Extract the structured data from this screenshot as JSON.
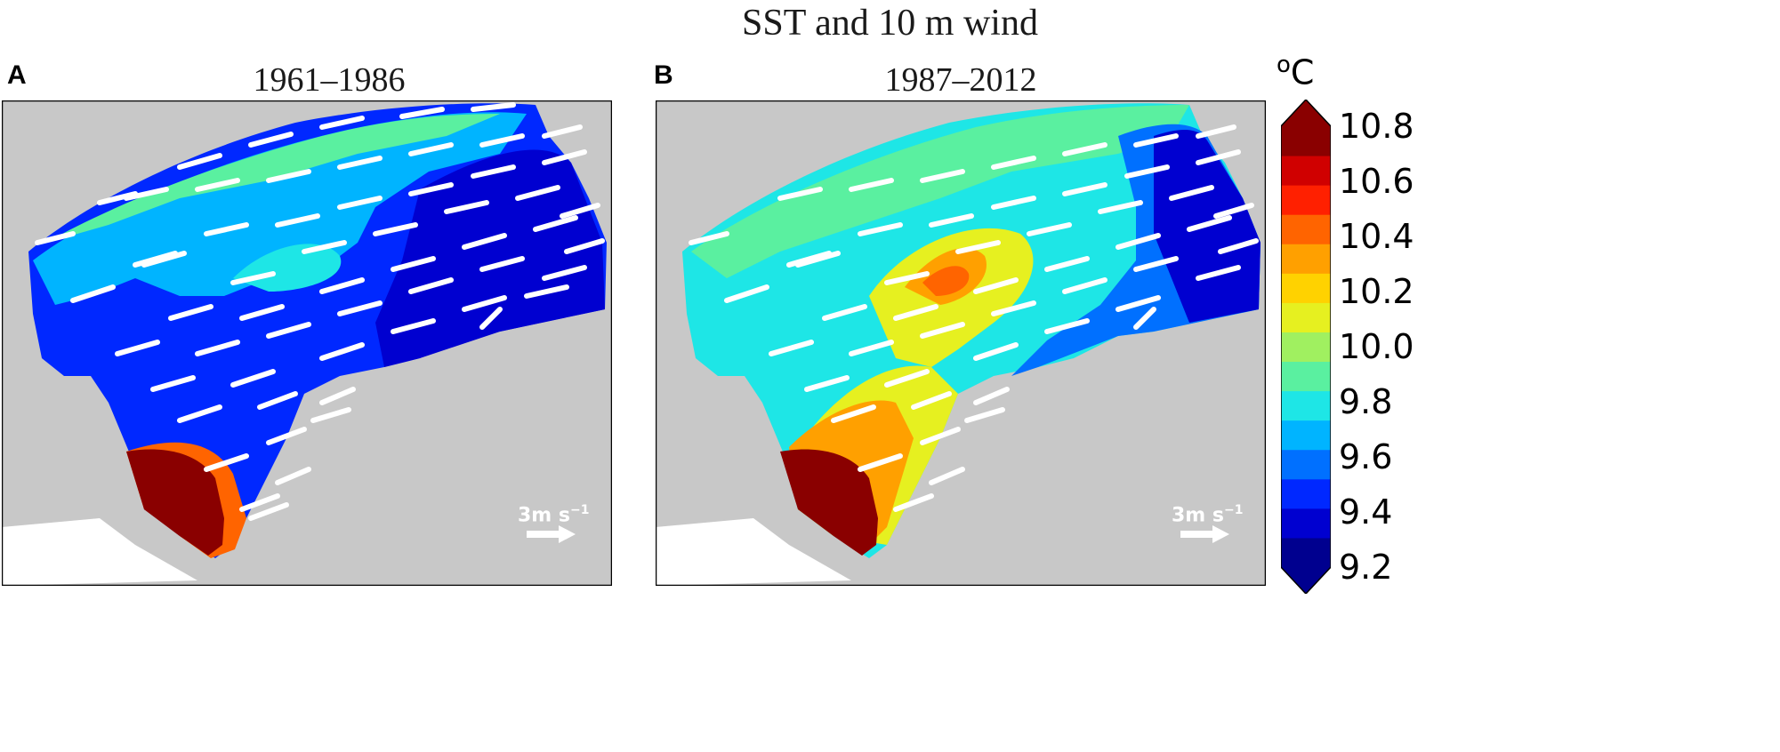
{
  "title": "SST and 10 m wind",
  "panels": [
    {
      "label": "A",
      "period": "1961–1986",
      "scale_label": "3m s",
      "scale_exp": "−1"
    },
    {
      "label": "B",
      "period": "1987–2012",
      "scale_label": "3m s",
      "scale_exp": "−1"
    }
  ],
  "colorbar": {
    "unit_sup": "o",
    "unit": "C",
    "ticks": [
      "10.8",
      "10.6",
      "10.4",
      "10.2",
      "10.0",
      "9.8",
      "9.6",
      "9.4",
      "9.2"
    ],
    "min": 9.2,
    "max": 10.8,
    "colors": [
      "#00008f",
      "#0000d0",
      "#0028ff",
      "#0070ff",
      "#00b4ff",
      "#1ee6e6",
      "#5af0a0",
      "#a0f060",
      "#e6f020",
      "#ffd200",
      "#ffa000",
      "#ff6400",
      "#ff2000",
      "#d00000",
      "#8a0000"
    ]
  },
  "colors": {
    "land": "#c8c8c8",
    "background": "#ffffff",
    "arrow": "#ffffff"
  }
}
